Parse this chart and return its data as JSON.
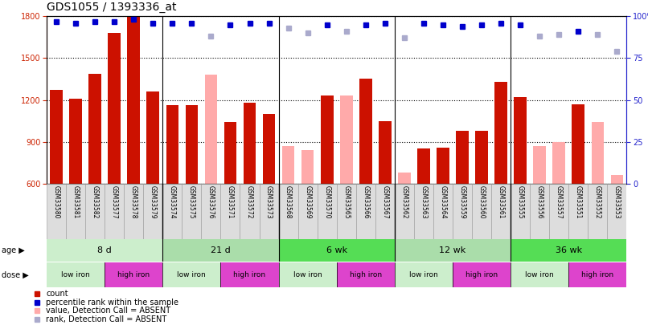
{
  "title": "GDS1055 / 1393336_at",
  "samples": [
    "GSM33580",
    "GSM33581",
    "GSM33582",
    "GSM33577",
    "GSM33578",
    "GSM33579",
    "GSM33574",
    "GSM33575",
    "GSM33576",
    "GSM33571",
    "GSM33572",
    "GSM33573",
    "GSM33568",
    "GSM33569",
    "GSM33570",
    "GSM33565",
    "GSM33566",
    "GSM33567",
    "GSM33562",
    "GSM33563",
    "GSM33564",
    "GSM33559",
    "GSM33560",
    "GSM33561",
    "GSM33555",
    "GSM33556",
    "GSM33557",
    "GSM33551",
    "GSM33552",
    "GSM33553"
  ],
  "count_values": [
    1270,
    1210,
    1390,
    1680,
    1800,
    1260,
    1160,
    1160,
    1380,
    1040,
    1180,
    1100,
    870,
    840,
    1230,
    1230,
    1350,
    1050,
    680,
    850,
    860,
    980,
    980,
    1330,
    1220,
    870,
    900,
    1170,
    1040,
    660
  ],
  "detection_call": [
    "P",
    "P",
    "P",
    "P",
    "P",
    "P",
    "P",
    "P",
    "A",
    "P",
    "P",
    "P",
    "A",
    "A",
    "P",
    "A",
    "P",
    "P",
    "A",
    "P",
    "P",
    "P",
    "P",
    "P",
    "P",
    "A",
    "A",
    "P",
    "A",
    "A"
  ],
  "percentile_rank": [
    97,
    96,
    97,
    97,
    98,
    96,
    96,
    96,
    88,
    95,
    96,
    96,
    93,
    90,
    95,
    91,
    95,
    96,
    87,
    96,
    95,
    94,
    95,
    96,
    95,
    88,
    89,
    91,
    89,
    79
  ],
  "age_groups": [
    {
      "label": "8 d",
      "start": 0,
      "end": 6,
      "color": "#cceecc"
    },
    {
      "label": "21 d",
      "start": 6,
      "end": 12,
      "color": "#aaddaa"
    },
    {
      "label": "6 wk",
      "start": 12,
      "end": 18,
      "color": "#55dd55"
    },
    {
      "label": "12 wk",
      "start": 18,
      "end": 24,
      "color": "#aaddaa"
    },
    {
      "label": "36 wk",
      "start": 24,
      "end": 30,
      "color": "#55dd55"
    }
  ],
  "dose_groups": [
    {
      "label": "low iron",
      "start": 0,
      "end": 3,
      "color": "#cceecc"
    },
    {
      "label": "high iron",
      "start": 3,
      "end": 6,
      "color": "#dd44cc"
    },
    {
      "label": "low iron",
      "start": 6,
      "end": 9,
      "color": "#cceecc"
    },
    {
      "label": "high iron",
      "start": 9,
      "end": 12,
      "color": "#dd44cc"
    },
    {
      "label": "low iron",
      "start": 12,
      "end": 15,
      "color": "#cceecc"
    },
    {
      "label": "high iron",
      "start": 15,
      "end": 18,
      "color": "#dd44cc"
    },
    {
      "label": "low iron",
      "start": 18,
      "end": 21,
      "color": "#cceecc"
    },
    {
      "label": "high iron",
      "start": 21,
      "end": 24,
      "color": "#dd44cc"
    },
    {
      "label": "low iron",
      "start": 24,
      "end": 27,
      "color": "#cceecc"
    },
    {
      "label": "high iron",
      "start": 27,
      "end": 30,
      "color": "#dd44cc"
    }
  ],
  "bar_color_present": "#cc1100",
  "bar_color_absent": "#ffaaaa",
  "dot_color_present": "#0000cc",
  "dot_color_absent": "#aaaacc",
  "ylim_left": [
    600,
    1800
  ],
  "ylim_right": [
    0,
    100
  ],
  "yticks_left": [
    600,
    900,
    1200,
    1500,
    1800
  ],
  "yticks_right": [
    0,
    25,
    50,
    75,
    100
  ],
  "background_color": "#ffffff",
  "tick_fontsize": 7,
  "legend_items": [
    {
      "color": "#cc1100",
      "label": "count"
    },
    {
      "color": "#0000cc",
      "label": "percentile rank within the sample"
    },
    {
      "color": "#ffaaaa",
      "label": "value, Detection Call = ABSENT"
    },
    {
      "color": "#aaaacc",
      "label": "rank, Detection Call = ABSENT"
    }
  ]
}
